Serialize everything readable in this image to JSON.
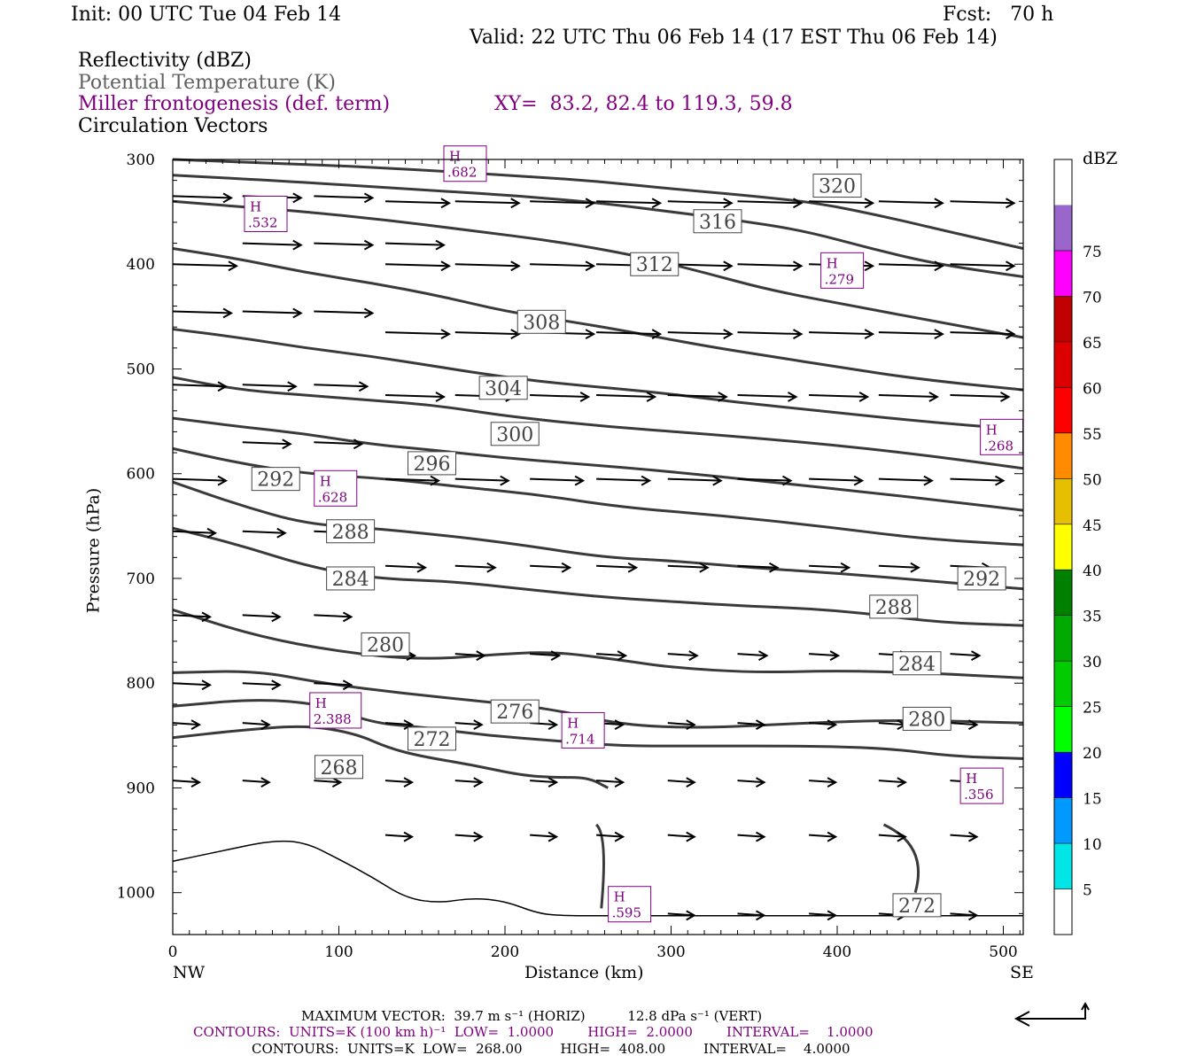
{
  "header": {
    "init": "Init: 00 UTC Tue 04 Feb 14",
    "fcst": "Fcst:   70 h",
    "valid": "Valid: 22 UTC Thu 06 Feb 14 (17 EST Thu 06 Feb 14)",
    "fields": [
      {
        "label": "Reflectivity (dBZ)",
        "color": "#000000"
      },
      {
        "label": "Potential Temperature (K)",
        "color": "#606060"
      },
      {
        "label": "Miller frontogenesis (def. term)",
        "color": "#800080"
      },
      {
        "label": "Circulation Vectors",
        "color": "#000000"
      }
    ],
    "xy": "XY=  83.2, 82.4 to 119.3, 59.8"
  },
  "chart_data": {
    "type": "cross-section",
    "xlabel": "Distance (km)",
    "ylabel": "Pressure (hPa)",
    "xlim": [
      0,
      512
    ],
    "ylim": [
      300,
      1040
    ],
    "y_scale": "linear (inverted)",
    "x_ticks": [
      0,
      100,
      200,
      300,
      400,
      500
    ],
    "y_ticks": [
      300,
      400,
      500,
      600,
      700,
      800,
      900,
      1000
    ],
    "x_end_labels": {
      "left": "NW",
      "right": "SE"
    },
    "theta_contours": [
      {
        "level": 268,
        "points": [
          [
            0,
            852
          ],
          [
            40,
            845
          ],
          [
            80,
            840
          ],
          [
            110,
            848
          ],
          [
            130,
            862
          ],
          [
            150,
            870
          ],
          [
            180,
            878
          ],
          [
            210,
            888
          ],
          [
            230,
            890
          ],
          [
            250,
            890
          ],
          [
            262,
            900
          ]
        ]
      },
      {
        "level": 272,
        "points": [
          [
            0,
            822
          ],
          [
            50,
            815
          ],
          [
            90,
            820
          ],
          [
            120,
            838
          ],
          [
            150,
            842
          ],
          [
            190,
            850
          ],
          [
            230,
            855
          ],
          [
            270,
            860
          ],
          [
            320,
            860
          ],
          [
            380,
            860
          ],
          [
            430,
            862
          ],
          [
            470,
            870
          ],
          [
            512,
            872
          ]
        ]
      },
      {
        "level": 276,
        "points": [
          [
            0,
            790
          ],
          [
            50,
            788
          ],
          [
            90,
            800
          ],
          [
            140,
            810
          ],
          [
            190,
            818
          ],
          [
            230,
            825
          ],
          [
            270,
            840
          ],
          [
            320,
            843
          ],
          [
            380,
            838
          ],
          [
            440,
            835
          ],
          [
            512,
            838
          ]
        ]
      },
      {
        "level": 280,
        "points": [
          [
            0,
            730
          ],
          [
            50,
            755
          ],
          [
            100,
            770
          ],
          [
            150,
            778
          ],
          [
            200,
            772
          ],
          [
            230,
            770
          ],
          [
            270,
            778
          ],
          [
            300,
            785
          ],
          [
            350,
            790
          ],
          [
            400,
            788
          ],
          [
            450,
            790
          ],
          [
            512,
            795
          ]
        ]
      },
      {
        "level": 284,
        "points": [
          [
            0,
            652
          ],
          [
            40,
            668
          ],
          [
            80,
            688
          ],
          [
            120,
            700
          ],
          [
            170,
            703
          ],
          [
            210,
            710
          ],
          [
            260,
            718
          ],
          [
            300,
            722
          ],
          [
            340,
            726
          ],
          [
            400,
            730
          ],
          [
            460,
            742
          ],
          [
            512,
            745
          ]
        ]
      },
      {
        "level": 288,
        "points": [
          [
            0,
            608
          ],
          [
            40,
            630
          ],
          [
            80,
            648
          ],
          [
            120,
            652
          ],
          [
            170,
            660
          ],
          [
            210,
            668
          ],
          [
            260,
            680
          ],
          [
            300,
            683
          ],
          [
            350,
            690
          ],
          [
            400,
            695
          ],
          [
            460,
            703
          ],
          [
            512,
            710
          ]
        ]
      },
      {
        "level": 292,
        "points": [
          [
            0,
            576
          ],
          [
            40,
            590
          ],
          [
            80,
            600
          ],
          [
            130,
            605
          ],
          [
            170,
            612
          ],
          [
            220,
            620
          ],
          [
            270,
            632
          ],
          [
            330,
            640
          ],
          [
            390,
            650
          ],
          [
            450,
            662
          ],
          [
            512,
            668
          ]
        ]
      },
      {
        "level": 296,
        "points": [
          [
            0,
            547
          ],
          [
            40,
            555
          ],
          [
            80,
            562
          ],
          [
            120,
            572
          ],
          [
            160,
            578
          ],
          [
            200,
            585
          ],
          [
            240,
            590
          ],
          [
            300,
            598
          ],
          [
            360,
            608
          ],
          [
            420,
            618
          ],
          [
            470,
            627
          ],
          [
            512,
            635
          ]
        ]
      },
      {
        "level": 300,
        "points": [
          [
            0,
            508
          ],
          [
            40,
            520
          ],
          [
            80,
            525
          ],
          [
            120,
            530
          ],
          [
            160,
            535
          ],
          [
            200,
            545
          ],
          [
            260,
            555
          ],
          [
            320,
            562
          ],
          [
            380,
            570
          ],
          [
            430,
            578
          ],
          [
            480,
            588
          ],
          [
            512,
            595
          ]
        ]
      },
      {
        "level": 304,
        "points": [
          [
            0,
            462
          ],
          [
            40,
            470
          ],
          [
            80,
            480
          ],
          [
            120,
            488
          ],
          [
            160,
            498
          ],
          [
            200,
            508
          ],
          [
            240,
            515
          ],
          [
            290,
            522
          ],
          [
            340,
            532
          ],
          [
            390,
            540
          ],
          [
            450,
            550
          ],
          [
            512,
            558
          ]
        ]
      },
      {
        "level": 308,
        "points": [
          [
            0,
            385
          ],
          [
            40,
            395
          ],
          [
            80,
            408
          ],
          [
            120,
            418
          ],
          [
            160,
            430
          ],
          [
            200,
            445
          ],
          [
            240,
            455
          ],
          [
            270,
            463
          ],
          [
            320,
            478
          ],
          [
            360,
            488
          ],
          [
            400,
            498
          ],
          [
            450,
            510
          ],
          [
            512,
            520
          ]
        ]
      },
      {
        "level": 312,
        "points": [
          [
            0,
            340
          ],
          [
            40,
            345
          ],
          [
            80,
            350
          ],
          [
            130,
            358
          ],
          [
            180,
            368
          ],
          [
            230,
            378
          ],
          [
            280,
            392
          ],
          [
            320,
            408
          ],
          [
            360,
            425
          ],
          [
            410,
            440
          ],
          [
            460,
            455
          ],
          [
            512,
            470
          ]
        ]
      },
      {
        "level": 316,
        "points": [
          [
            0,
            315
          ],
          [
            60,
            320
          ],
          [
            110,
            325
          ],
          [
            160,
            330
          ],
          [
            210,
            335
          ],
          [
            260,
            342
          ],
          [
            300,
            350
          ],
          [
            340,
            358
          ],
          [
            380,
            368
          ],
          [
            420,
            385
          ],
          [
            460,
            400
          ],
          [
            512,
            412
          ]
        ]
      },
      {
        "level": 320,
        "points": [
          [
            0,
            300
          ],
          [
            50,
            303
          ],
          [
            100,
            306
          ],
          [
            150,
            310
          ],
          [
            200,
            315
          ],
          [
            250,
            320
          ],
          [
            300,
            328
          ],
          [
            350,
            335
          ],
          [
            390,
            342
          ],
          [
            430,
            355
          ],
          [
            470,
            370
          ],
          [
            512,
            385
          ]
        ]
      }
    ],
    "contour_labels": [
      {
        "text": "320",
        "x": 400,
        "y": 325
      },
      {
        "text": "316",
        "x": 328,
        "y": 359
      },
      {
        "text": "312",
        "x": 290,
        "y": 400
      },
      {
        "text": "308",
        "x": 222,
        "y": 455
      },
      {
        "text": "304",
        "x": 199,
        "y": 518
      },
      {
        "text": "300",
        "x": 206,
        "y": 562
      },
      {
        "text": "296",
        "x": 156,
        "y": 590
      },
      {
        "text": "292",
        "x": 62,
        "y": 605
      },
      {
        "text": "288",
        "x": 107,
        "y": 655
      },
      {
        "text": "284",
        "x": 107,
        "y": 700
      },
      {
        "text": "280",
        "x": 128,
        "y": 763
      },
      {
        "text": "276",
        "x": 206,
        "y": 827
      },
      {
        "text": "272",
        "x": 156,
        "y": 853
      },
      {
        "text": "268",
        "x": 100,
        "y": 880
      },
      {
        "text": "292",
        "x": 487,
        "y": 700
      },
      {
        "text": "288",
        "x": 434,
        "y": 727
      },
      {
        "text": "284",
        "x": 448,
        "y": 781
      },
      {
        "text": "280",
        "x": 454,
        "y": 834
      },
      {
        "text": "272",
        "x": 448,
        "y": 1012
      }
    ],
    "frontogenesis_maxima": [
      {
        "label": "H",
        "value": ".532",
        "x": 56,
        "y": 352
      },
      {
        "label": "H",
        "value": ".682",
        "x": 176,
        "y": 304
      },
      {
        "label": "H",
        "value": ".279",
        "x": 403,
        "y": 406
      },
      {
        "label": "H",
        "value": ".268",
        "x": 499,
        "y": 565
      },
      {
        "label": "H",
        "value": ".628",
        "x": 98,
        "y": 614
      },
      {
        "label": "H",
        "value": "2.388",
        "x": 98,
        "y": 826
      },
      {
        "label": "H",
        "value": ".714",
        "x": 247,
        "y": 845
      },
      {
        "label": "H",
        "value": ".356",
        "x": 487,
        "y": 898
      },
      {
        "label": "H",
        "value": ".595",
        "x": 275,
        "y": 1011
      }
    ],
    "vector_rows": [
      {
        "p": 335,
        "xs": [
          0,
          42,
          85
        ],
        "len": 22
      },
      {
        "p": 340,
        "xs": [
          128,
          170,
          215,
          255,
          298,
          340,
          383,
          425,
          468
        ],
        "len": 24
      },
      {
        "p": 380,
        "xs": [
          42,
          85,
          128
        ],
        "len": 22
      },
      {
        "p": 400,
        "xs": [
          0,
          128,
          170,
          215,
          255,
          298,
          340,
          383,
          425,
          468
        ],
        "len": 24
      },
      {
        "p": 445,
        "xs": [
          0,
          42,
          85
        ],
        "len": 22
      },
      {
        "p": 465,
        "xs": [
          128,
          170,
          215,
          255,
          298,
          340,
          383,
          425,
          468
        ],
        "len": 24
      },
      {
        "p": 515,
        "xs": [
          0,
          42,
          85
        ],
        "len": 20
      },
      {
        "p": 525,
        "xs": [
          128,
          170,
          215,
          255,
          298,
          340,
          383,
          425,
          468
        ],
        "len": 22
      },
      {
        "p": 570,
        "xs": [
          42,
          85
        ],
        "len": 18
      },
      {
        "p": 605,
        "xs": [
          0,
          128,
          170,
          215,
          255,
          298,
          340,
          383,
          425,
          468
        ],
        "len": 20
      },
      {
        "p": 655,
        "xs": [
          0,
          42,
          85
        ],
        "len": 16
      },
      {
        "p": 688,
        "xs": [
          128,
          170,
          215,
          255,
          298,
          340,
          383,
          425,
          468
        ],
        "len": 15
      },
      {
        "p": 735,
        "xs": [
          0,
          42,
          85
        ],
        "len": 14
      },
      {
        "p": 772,
        "xs": [
          128,
          170,
          215,
          255,
          298,
          340,
          383,
          425,
          468
        ],
        "len": 11
      },
      {
        "p": 800,
        "xs": [
          0,
          42,
          85
        ],
        "len": 14
      },
      {
        "p": 838,
        "xs": [
          0,
          42,
          128,
          170,
          215,
          255,
          298,
          340,
          383,
          425,
          468
        ],
        "len": 10
      },
      {
        "p": 893,
        "xs": [
          0,
          42,
          85,
          128,
          170,
          215,
          255,
          298,
          340,
          383,
          425,
          468
        ],
        "len": 10
      },
      {
        "p": 945,
        "xs": [
          128,
          170,
          215,
          255,
          298,
          340,
          383,
          425,
          468
        ],
        "len": 10
      },
      {
        "p": 1020,
        "xs": [
          298,
          340,
          383,
          425,
          468
        ],
        "len": 10
      }
    ],
    "terrain": [
      [
        0,
        970
      ],
      [
        30,
        960
      ],
      [
        60,
        950
      ],
      [
        80,
        952
      ],
      [
        100,
        968
      ],
      [
        120,
        985
      ],
      [
        140,
        1005
      ],
      [
        160,
        1010
      ],
      [
        180,
        1005
      ],
      [
        200,
        1008
      ],
      [
        220,
        1020
      ],
      [
        235,
        1022
      ],
      [
        260,
        1022
      ],
      [
        300,
        1022
      ],
      [
        400,
        1022
      ],
      [
        512,
        1022
      ]
    ],
    "colorbar": {
      "title": "dBZ",
      "levels": [
        "5",
        "10",
        "15",
        "20",
        "25",
        "30",
        "35",
        "40",
        "45",
        "50",
        "55",
        "60",
        "65",
        "70",
        "75"
      ],
      "colors": [
        "#ffffff",
        "#00e5e5",
        "#0099ff",
        "#0000ff",
        "#00ff00",
        "#00cc00",
        "#00aa00",
        "#008000",
        "#ffff00",
        "#e6c000",
        "#ff8c00",
        "#ff0000",
        "#dd0000",
        "#c00000",
        "#ff00ff",
        "#9966cc",
        "#ffffff"
      ]
    }
  },
  "footer": {
    "max_vector": "MAXIMUM VECTOR:  39.7 m s⁻¹ (HORIZ)          12.8 dPa s⁻¹ (VERT)",
    "contours_purple": "CONTOURS:  UNITS=K (100 km h)⁻¹  LOW=  1.0000        HIGH=  2.0000        INTERVAL=    1.0000",
    "contours_black": "CONTOURS:  UNITS=K  LOW=  268.00         HIGH=  408.00         INTERVAL=    4.0000"
  }
}
